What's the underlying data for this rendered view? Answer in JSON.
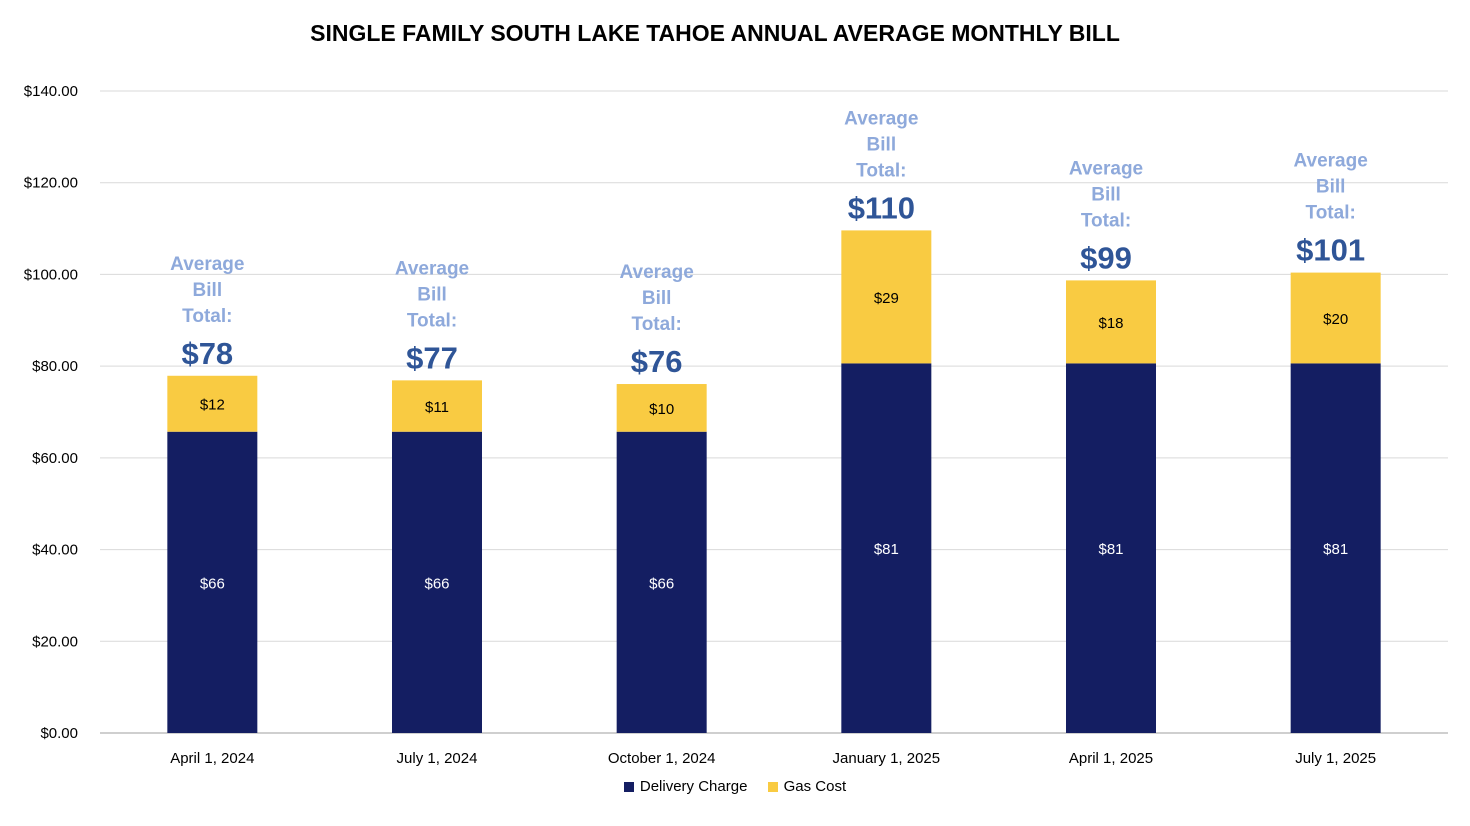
{
  "colors": {
    "delivery": "#141e62",
    "gas": "#f9cb42",
    "grid": "#d9d9d9",
    "axis": "#bfbfbf",
    "annotation_label": "#8ea9db",
    "annotation_value": "#2f5597"
  },
  "chart_data": {
    "type": "bar",
    "stacked": true,
    "title": "SINGLE FAMILY SOUTH LAKE TAHOE ANNUAL AVERAGE MONTHLY BILL",
    "categories": [
      "April 1, 2024",
      "July 1, 2024",
      "October 1, 2024",
      "January 1, 2025",
      "April 1, 2025",
      "July 1, 2025"
    ],
    "series": [
      {
        "name": "Delivery Charge",
        "values": [
          65.7,
          65.7,
          65.7,
          80.6,
          80.6,
          80.6
        ],
        "labels": [
          "$66",
          "$66",
          "$66",
          "$81",
          "$81",
          "$81"
        ]
      },
      {
        "name": "Gas Cost",
        "values": [
          12.2,
          11.2,
          10.4,
          29.0,
          18.1,
          19.8
        ],
        "labels": [
          "$12",
          "$11",
          "$10",
          "$29",
          "$18",
          "$20"
        ]
      }
    ],
    "annotations": {
      "label_lines": [
        "Average",
        "Bill",
        "Total:"
      ],
      "totals": [
        "$78",
        "$77",
        "$76",
        "$110",
        "$99",
        "$101"
      ]
    },
    "ylim": [
      0,
      140
    ],
    "yticks": [
      0,
      20,
      40,
      60,
      80,
      100,
      120,
      140
    ],
    "ytick_labels": [
      "$0.00",
      "$20.00",
      "$40.00",
      "$60.00",
      "$80.00",
      "$100.00",
      "$120.00",
      "$140.00"
    ],
    "xlabel": "",
    "ylabel": "",
    "grid": true,
    "legend": {
      "position": "bottom",
      "entries": [
        "Delivery Charge",
        "Gas Cost"
      ]
    }
  }
}
